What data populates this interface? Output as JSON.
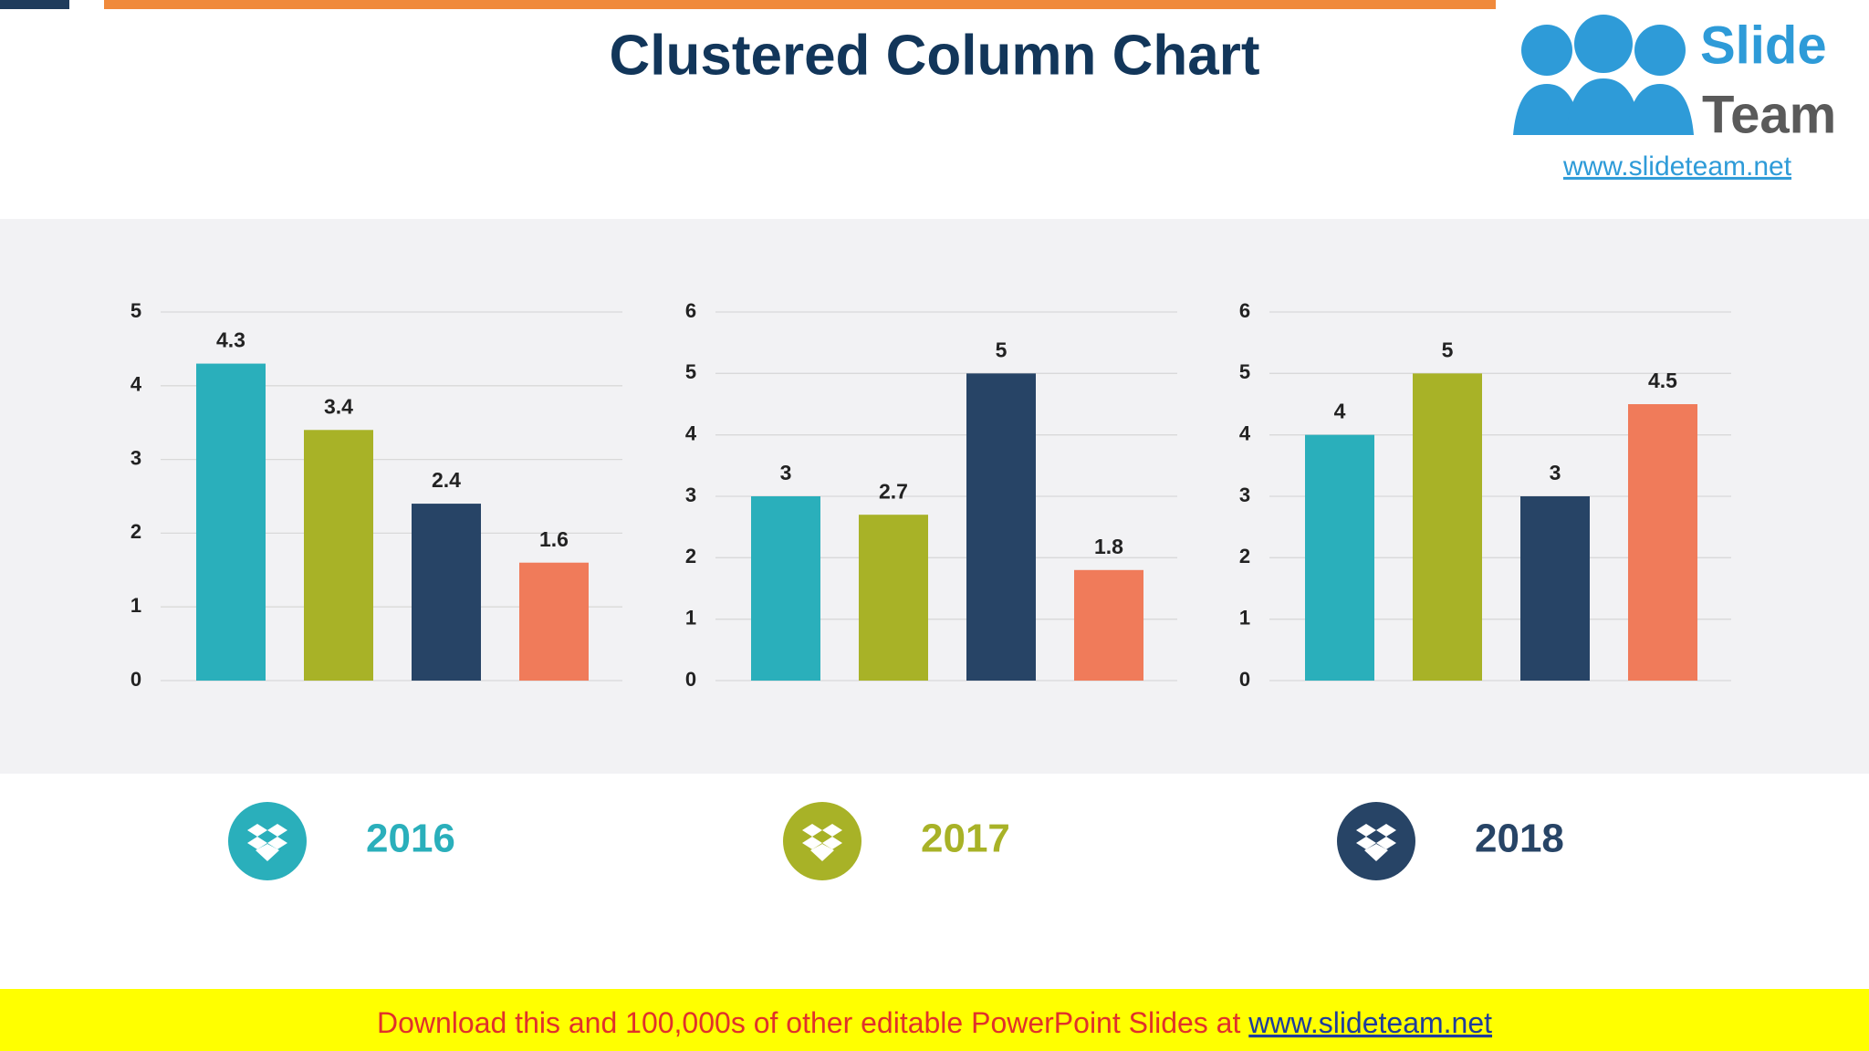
{
  "header": {
    "title": "Clustered Column Chart"
  },
  "logo": {
    "line1": "Slide",
    "line2": "Team",
    "url": "www.slideteam.net"
  },
  "footer": {
    "text": "Download this and 100,000s of other editable PowerPoint Slides at ",
    "link": "www.slideteam.net"
  },
  "chart_data": [
    {
      "type": "bar",
      "title": "2016",
      "color": "#2aafbb",
      "categories": [
        null,
        null,
        null,
        null
      ],
      "values": [
        4.3,
        3.4,
        2.4,
        1.6
      ],
      "colors": [
        "#2aafbb",
        "#a8b227",
        "#274466",
        "#f07b5a"
      ],
      "ylim": [
        0,
        5
      ],
      "yticks": [
        0,
        1,
        2,
        3,
        4,
        5
      ],
      "grid": true
    },
    {
      "type": "bar",
      "title": "2017",
      "color": "#a8b227",
      "categories": [
        null,
        null,
        null,
        null
      ],
      "values": [
        3,
        2.7,
        5,
        1.8
      ],
      "colors": [
        "#2aafbb",
        "#a8b227",
        "#274466",
        "#f07b5a"
      ],
      "ylim": [
        0,
        6
      ],
      "yticks": [
        0,
        1,
        2,
        3,
        4,
        5,
        6
      ],
      "grid": true
    },
    {
      "type": "bar",
      "title": "2018",
      "color": "#274466",
      "categories": [
        null,
        null,
        null,
        null
      ],
      "values": [
        4,
        5,
        3,
        4.5
      ],
      "colors": [
        "#2aafbb",
        "#a8b227",
        "#274466",
        "#f07b5a"
      ],
      "ylim": [
        0,
        6
      ],
      "yticks": [
        0,
        1,
        2,
        3,
        4,
        5,
        6
      ],
      "grid": true
    }
  ]
}
